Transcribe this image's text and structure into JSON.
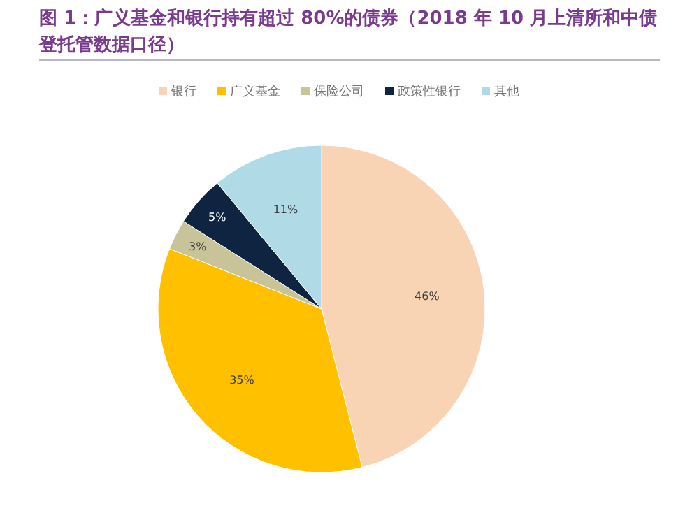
{
  "chart_data": {
    "type": "pie",
    "title": "图 1：广义基金和银行持有超过 80%的债券（2018 年 10 月上清所和中债登托管数据口径）",
    "categories": [
      "银行",
      "广义基金",
      "保险公司",
      "政策性银行",
      "其他"
    ],
    "values": [
      46,
      35,
      3,
      5,
      11
    ],
    "colors": [
      "#f8d3b4",
      "#ffc000",
      "#c9c39a",
      "#0f2440",
      "#b0dbe6"
    ],
    "value_labels": [
      "46%",
      "35%",
      "3%",
      "5%",
      "11%"
    ],
    "legend": "top"
  }
}
